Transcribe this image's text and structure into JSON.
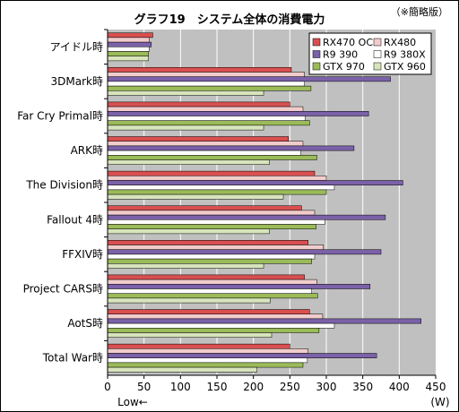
{
  "chart_data": {
    "type": "bar",
    "orientation": "horizontal",
    "title": "グラフ19　システム全体の消費電力",
    "note": "（※簡略版）",
    "xlabel": "(W)",
    "low_label": "Low←",
    "xlim": [
      0,
      450
    ],
    "xticks": [
      0,
      50,
      100,
      150,
      200,
      250,
      300,
      350,
      400,
      450
    ],
    "grid": true,
    "legend_position": "top-right",
    "categories": [
      "アイドル時",
      "3DMark時",
      "Far Cry Primal時",
      "ARK時",
      "The Division時",
      "Fallout 4時",
      "FFXIV時",
      "Project CARS時",
      "AotS時",
      "Total War時"
    ],
    "series": [
      {
        "name": "RX470 OC",
        "color": "#d94f4f",
        "values": [
          62,
          252,
          250,
          248,
          284,
          266,
          275,
          270,
          277,
          250
        ]
      },
      {
        "name": "RX480",
        "color": "#f2cccc",
        "values": [
          57,
          270,
          268,
          268,
          300,
          284,
          296,
          287,
          295,
          275
        ]
      },
      {
        "name": "R9 390",
        "color": "#7b61a8",
        "values": [
          60,
          388,
          358,
          338,
          405,
          381,
          375,
          360,
          430,
          369
        ]
      },
      {
        "name": "R9 380X",
        "color": "#ffffff",
        "values": [
          57,
          270,
          271,
          265,
          311,
          298,
          284,
          280,
          311,
          274
        ]
      },
      {
        "name": "GTX 970",
        "color": "#9bbb59",
        "values": [
          56,
          279,
          277,
          287,
          300,
          286,
          280,
          288,
          290,
          268
        ]
      },
      {
        "name": "GTX 960",
        "color": "#d7e4bc",
        "values": [
          56,
          214,
          214,
          222,
          241,
          222,
          214,
          223,
          225,
          205
        ]
      }
    ]
  }
}
